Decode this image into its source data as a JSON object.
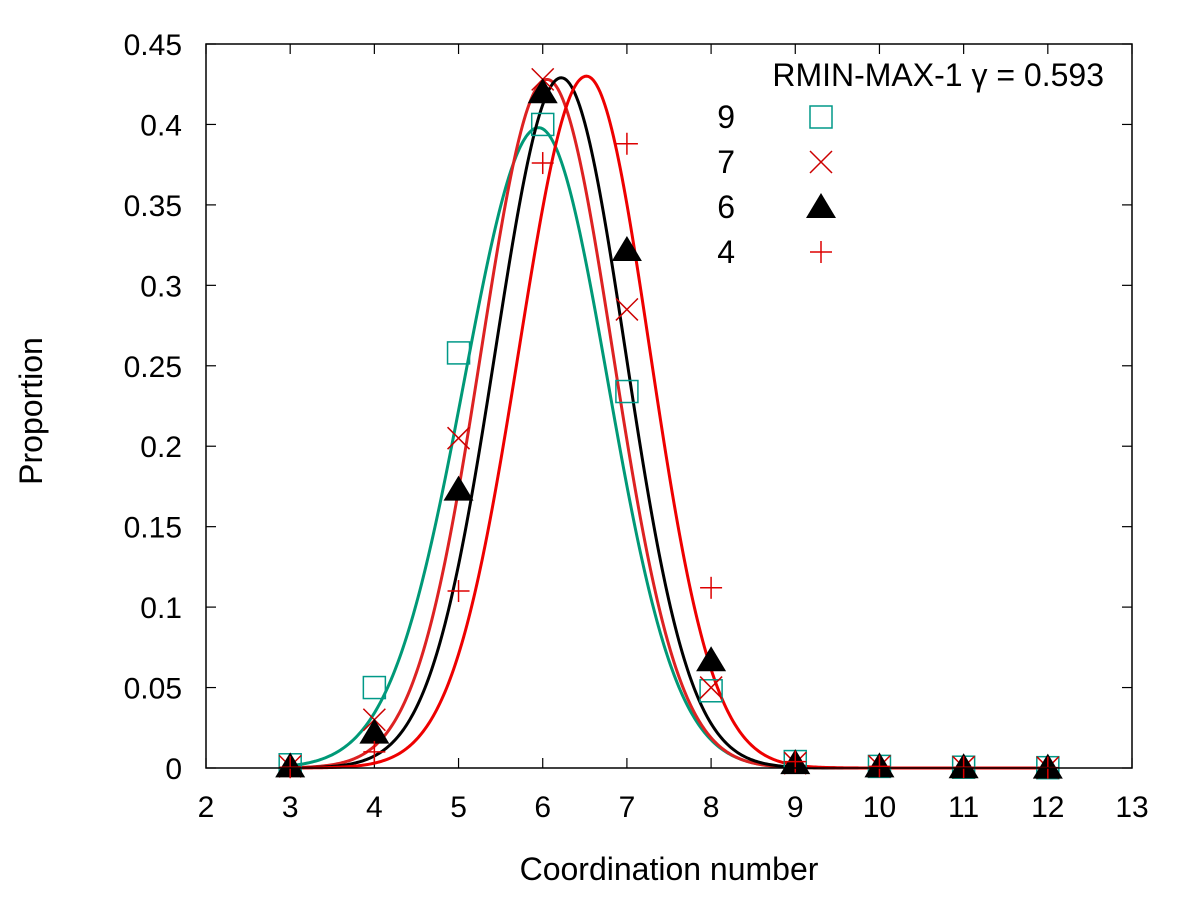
{
  "chart_data": {
    "type": "scatter",
    "title": "",
    "xlabel": "Coordination number",
    "ylabel": "Proportion",
    "xlim": [
      2,
      13
    ],
    "ylim": [
      0,
      0.45
    ],
    "xticks": [
      "2",
      "3",
      "4",
      "5",
      "6",
      "7",
      "8",
      "9",
      "10",
      "11",
      "12",
      "13"
    ],
    "yticks": [
      "0",
      "0.05",
      "0.1",
      "0.15",
      "0.2",
      "0.25",
      "0.3",
      "0.35",
      "0.4",
      "0.45"
    ],
    "legend_title": "RMIN-MAX-1 γ = 0.593",
    "legend_position": "top-right",
    "series": [
      {
        "name": "9",
        "marker": "square",
        "color": "#009988",
        "x": [
          3,
          4,
          5,
          6,
          7,
          8,
          9,
          10,
          11,
          12
        ],
        "y": [
          0.002,
          0.05,
          0.258,
          0.4,
          0.234,
          0.048,
          0.004,
          0.001,
          0.0005,
          0.0002
        ],
        "fit": {
          "peak_x": 5.95,
          "peak_y": 0.398,
          "sigma_left": 0.88,
          "sigma_right": 0.82
        }
      },
      {
        "name": "7",
        "marker": "cross",
        "color": "#cc0000",
        "x": [
          3,
          4,
          5,
          6,
          7,
          8,
          9,
          10,
          11,
          12
        ],
        "y": [
          0.001,
          0.03,
          0.205,
          0.428,
          0.285,
          0.05,
          0.003,
          0.001,
          0.0005,
          0.0002
        ],
        "fit": {
          "peak_x": 6.05,
          "peak_y": 0.428,
          "sigma_left": 0.78,
          "sigma_right": 0.78
        }
      },
      {
        "name": "6",
        "marker": "triangle",
        "color": "#000000",
        "x": [
          3,
          4,
          5,
          6,
          7,
          8,
          9,
          10,
          11,
          12
        ],
        "y": [
          0.001,
          0.022,
          0.173,
          0.42,
          0.322,
          0.067,
          0.003,
          0.001,
          0.0005,
          0.0002
        ],
        "fit": {
          "peak_x": 6.22,
          "peak_y": 0.429,
          "sigma_left": 0.78,
          "sigma_right": 0.76
        }
      },
      {
        "name": "4",
        "marker": "plus",
        "color": "#dd0000",
        "x": [
          3,
          4,
          5,
          6,
          7,
          8,
          9,
          10,
          11,
          12
        ],
        "y": [
          0.0005,
          0.01,
          0.11,
          0.376,
          0.388,
          0.112,
          0.004,
          0.001,
          0.0005,
          0.0002
        ],
        "fit": {
          "peak_x": 6.52,
          "peak_y": 0.43,
          "sigma_left": 0.8,
          "sigma_right": 0.75
        }
      }
    ]
  }
}
